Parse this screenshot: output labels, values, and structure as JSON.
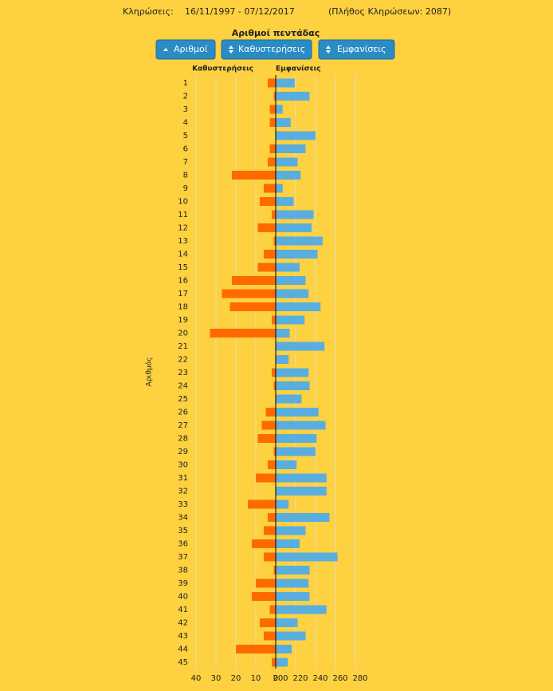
{
  "header": {
    "label": "Κληρώσεις:",
    "range": "16/11/1997 - 07/12/2017",
    "count": "(Πλήθος Κληρώσεων: 2087)"
  },
  "controls": [
    "Αριθμοί",
    "Καθυστερήσεις",
    "Εμφανίσεις"
  ],
  "chart_data": {
    "type": "butterfly",
    "title": "Αριθμοί πεντάδας",
    "ylabel": "Αριθμός",
    "categories": [
      1,
      2,
      3,
      4,
      5,
      6,
      7,
      8,
      9,
      10,
      11,
      12,
      13,
      14,
      15,
      16,
      17,
      18,
      19,
      20,
      21,
      22,
      23,
      24,
      25,
      26,
      27,
      28,
      29,
      30,
      31,
      32,
      33,
      34,
      35,
      36,
      37,
      38,
      39,
      40,
      41,
      42,
      43,
      44,
      45
    ],
    "series": [
      {
        "name": "Καθυστερήσεις",
        "color": "#ff6a00",
        "axis": "x",
        "values": [
          4,
          1,
          3,
          3,
          0,
          3,
          4,
          22,
          6,
          8,
          2,
          9,
          1,
          6,
          9,
          22,
          27,
          23,
          2,
          33,
          0,
          0,
          2,
          1,
          0,
          5,
          7,
          9,
          1,
          4,
          10,
          0,
          14,
          4,
          6,
          12,
          6,
          1,
          10,
          12,
          3,
          8,
          6,
          20,
          2
        ]
      },
      {
        "name": "Εμφανίσεις",
        "color": "#5aaedf",
        "axis": "x2",
        "values": [
          219,
          234,
          207,
          215,
          240,
          230,
          222,
          225,
          207,
          218,
          238,
          236,
          247,
          242,
          224,
          230,
          233,
          245,
          229,
          214,
          249,
          213,
          233,
          234,
          226,
          243,
          250,
          241,
          240,
          221,
          251,
          251,
          213,
          254,
          230,
          224,
          262,
          234,
          233,
          234,
          251,
          222,
          230,
          216,
          212
        ]
      }
    ],
    "xlim": [
      40,
      0
    ],
    "xticks": [
      40,
      30,
      20,
      10,
      0
    ],
    "x2lim": [
      200,
      280
    ],
    "x2ticks": [
      200,
      220,
      240,
      260,
      280
    ],
    "grid": true
  }
}
